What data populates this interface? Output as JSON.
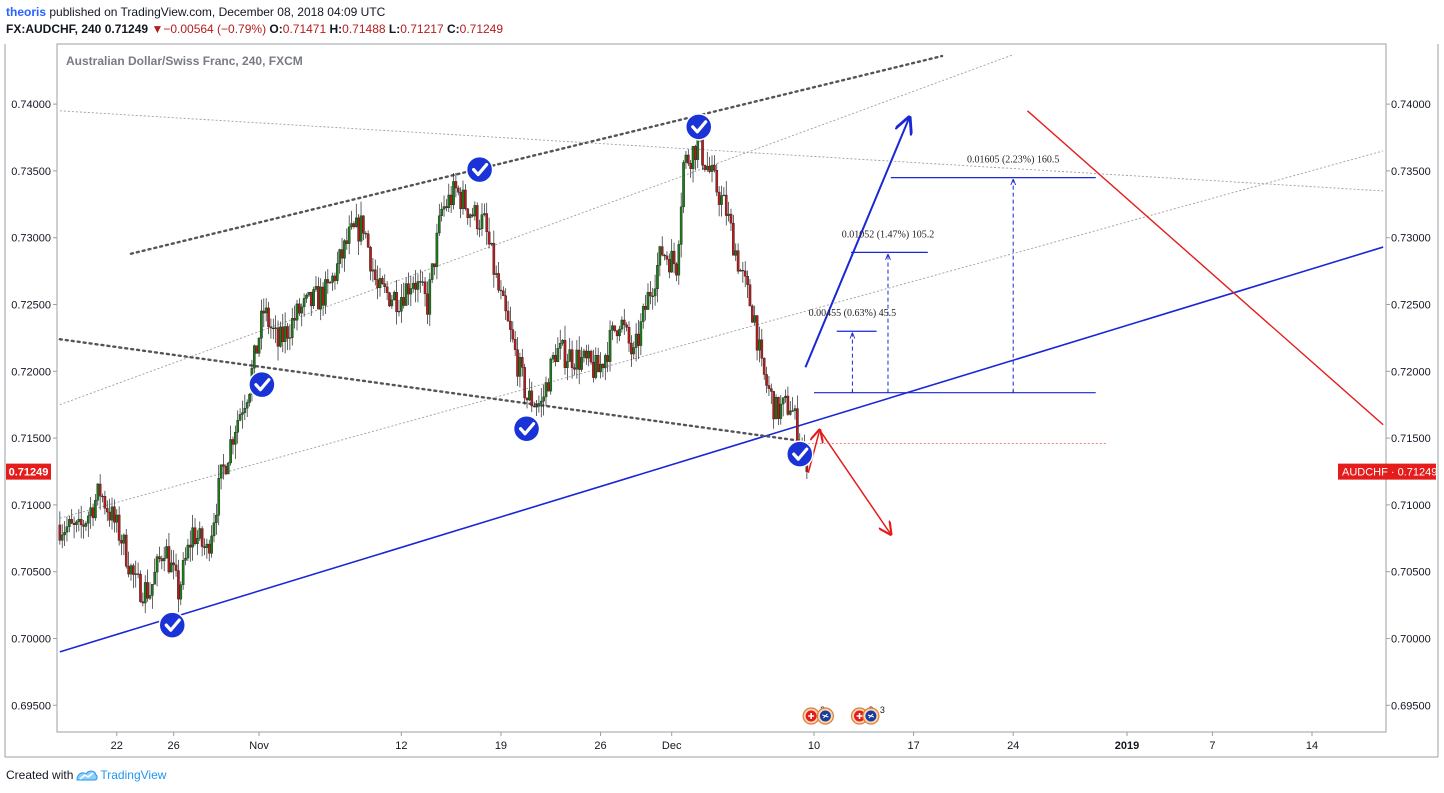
{
  "header": {
    "author": "theoris",
    "published_text": "published on TradingView.com, December 08, 2018 04:09 UTC",
    "symbol": "FX:AUDCHF, 240",
    "last": "0.71249",
    "change": "−0.00564 (−0.79%)",
    "open_label": "O:",
    "open": "0.71471",
    "high_label": "H:",
    "high": "0.71488",
    "low_label": "L:",
    "low": "0.71217",
    "close_label": "C:",
    "close": "0.71249"
  },
  "footer": {
    "created_with": "Created with",
    "brand": "TradingView"
  },
  "colors": {
    "up": "#1b7a1b",
    "down": "#b71c1c",
    "blue_line": "#1a27d6",
    "red_line": "#e51c1c",
    "check": "#1a33d6",
    "price_tag": "#e51c1c"
  },
  "chart_data": {
    "type": "candlestick",
    "title": "Australian Dollar/Swiss Franc, 240, FXCM",
    "ylim": [
      0.693,
      0.7445
    ],
    "y_ticks": [
      "0.69500",
      "0.70000",
      "0.70500",
      "0.71000",
      "0.71500",
      "0.72000",
      "0.72500",
      "0.73000",
      "0.73500",
      "0.74000"
    ],
    "x_ticks": [
      {
        "label": "22",
        "day": 22
      },
      {
        "label": "26",
        "day": 26
      },
      {
        "label": "Nov",
        "day": 32
      },
      {
        "label": "12",
        "day": 42
      },
      {
        "label": "19",
        "day": 49
      },
      {
        "label": "26",
        "day": 56
      },
      {
        "label": "Dec",
        "day": 61
      },
      {
        "label": "10",
        "day": 71
      },
      {
        "label": "17",
        "day": 78
      },
      {
        "label": "24",
        "day": 85
      },
      {
        "label": "2019",
        "day": 93,
        "bold": true
      },
      {
        "label": "7",
        "day": 99
      },
      {
        "label": "14",
        "day": 106
      }
    ],
    "x_day_range": [
      17.8,
      111.2
    ],
    "price_path": [
      [
        18.0,
        0.7085
      ],
      [
        19.5,
        0.708
      ],
      [
        21.0,
        0.711
      ],
      [
        22.5,
        0.7075
      ],
      [
        23.5,
        0.704
      ],
      [
        24.5,
        0.7035
      ],
      [
        25.5,
        0.707
      ],
      [
        26.5,
        0.7035
      ],
      [
        27.5,
        0.708
      ],
      [
        28.5,
        0.7065
      ],
      [
        29.5,
        0.712
      ],
      [
        30.5,
        0.716
      ],
      [
        31.5,
        0.719
      ],
      [
        32.5,
        0.7245
      ],
      [
        33.5,
        0.722
      ],
      [
        35.0,
        0.7245
      ],
      [
        37.0,
        0.726
      ],
      [
        38.5,
        0.73
      ],
      [
        39.5,
        0.731
      ],
      [
        40.5,
        0.726
      ],
      [
        42.0,
        0.7255
      ],
      [
        43.0,
        0.727
      ],
      [
        44.0,
        0.725
      ],
      [
        45.0,
        0.732
      ],
      [
        46.0,
        0.7335
      ],
      [
        47.0,
        0.732
      ],
      [
        48.0,
        0.731
      ],
      [
        49.0,
        0.726
      ],
      [
        50.0,
        0.722
      ],
      [
        51.0,
        0.718
      ],
      [
        52.0,
        0.7175
      ],
      [
        53.0,
        0.7215
      ],
      [
        54.5,
        0.721
      ],
      [
        56.0,
        0.72
      ],
      [
        57.5,
        0.724
      ],
      [
        58.5,
        0.721
      ],
      [
        59.5,
        0.7255
      ],
      [
        60.5,
        0.729
      ],
      [
        61.5,
        0.728
      ],
      [
        62.0,
        0.7355
      ],
      [
        63.0,
        0.737
      ],
      [
        64.0,
        0.7345
      ],
      [
        65.0,
        0.732
      ],
      [
        66.0,
        0.7275
      ],
      [
        67.0,
        0.724
      ],
      [
        67.5,
        0.72
      ],
      [
        68.5,
        0.717
      ],
      [
        69.5,
        0.7175
      ],
      [
        70.2,
        0.715
      ],
      [
        70.6,
        0.7125
      ]
    ],
    "last_price": 0.71249,
    "last_price_label": "AUDCHF",
    "last_price_text": "0.71249",
    "checkmarks": [
      {
        "day": 25.9,
        "price": 0.701
      },
      {
        "day": 32.2,
        "price": 0.719
      },
      {
        "day": 47.5,
        "price": 0.7351
      },
      {
        "day": 50.8,
        "price": 0.7157
      },
      {
        "day": 62.9,
        "price": 0.7383
      },
      {
        "day": 70.0,
        "price": 0.7138
      }
    ],
    "trendlines": [
      {
        "style": "blue",
        "p1": [
          18.0,
          0.699
        ],
        "p2": [
          111.0,
          0.7293
        ]
      },
      {
        "style": "dotted-dark",
        "p1": [
          23.0,
          0.7288
        ],
        "p2": [
          80.0,
          0.7436
        ]
      },
      {
        "style": "dotted-dark",
        "p1": [
          18.0,
          0.7224
        ],
        "p2": [
          70.0,
          0.7148
        ]
      },
      {
        "style": "dotted-grey",
        "p1": [
          18.0,
          0.709
        ],
        "p2": [
          111.0,
          0.7365
        ]
      },
      {
        "style": "dotted-grey",
        "p1": [
          18.0,
          0.7175
        ],
        "p2": [
          85.0,
          0.7437
        ]
      },
      {
        "style": "dotted-grey",
        "p1": [
          18.0,
          0.7395
        ],
        "p2": [
          111.0,
          0.7335
        ]
      },
      {
        "style": "dotted-red",
        "p1": [
          70.0,
          0.7146
        ],
        "p2": [
          91.5,
          0.7146
        ]
      },
      {
        "style": "red",
        "p1": [
          86.0,
          0.7395
        ],
        "p2": [
          111.0,
          0.716
        ]
      }
    ],
    "arrows": [
      {
        "style": "blue",
        "p1": [
          70.4,
          0.7203
        ],
        "p2": [
          77.7,
          0.739
        ]
      },
      {
        "style": "red",
        "p1": [
          70.6,
          0.7124
        ],
        "p2": [
          71.4,
          0.7156
        ]
      },
      {
        "style": "red",
        "p1": [
          71.4,
          0.7156
        ],
        "p2": [
          76.4,
          0.7078
        ]
      }
    ],
    "levels": [
      {
        "price": 0.7184,
        "d1": 71.0,
        "d2": 90.8
      },
      {
        "price": 0.723,
        "d1": 72.6,
        "d2": 75.4
      },
      {
        "price": 0.7289,
        "d1": 73.6,
        "d2": 79.0
      },
      {
        "price": 0.7345,
        "d1": 76.4,
        "d2": 90.8
      }
    ],
    "measures": [
      {
        "day": 73.7,
        "from": 0.7184,
        "to": 0.723,
        "text": "0.00455 (0.63%) 45.5"
      },
      {
        "day": 76.2,
        "from": 0.7184,
        "to": 0.7289,
        "text": "0.01052 (1.47%) 105.2"
      },
      {
        "day": 85.0,
        "from": 0.7184,
        "to": 0.7345,
        "text": "0.01605 (2.23%) 160.5"
      }
    ],
    "event_badges": [
      {
        "day": 70.8,
        "count": "3"
      },
      {
        "day": 71.8,
        "count": ""
      },
      {
        "day": 74.2,
        "count": "3"
      },
      {
        "day": 75.0,
        "count": "3"
      }
    ]
  }
}
